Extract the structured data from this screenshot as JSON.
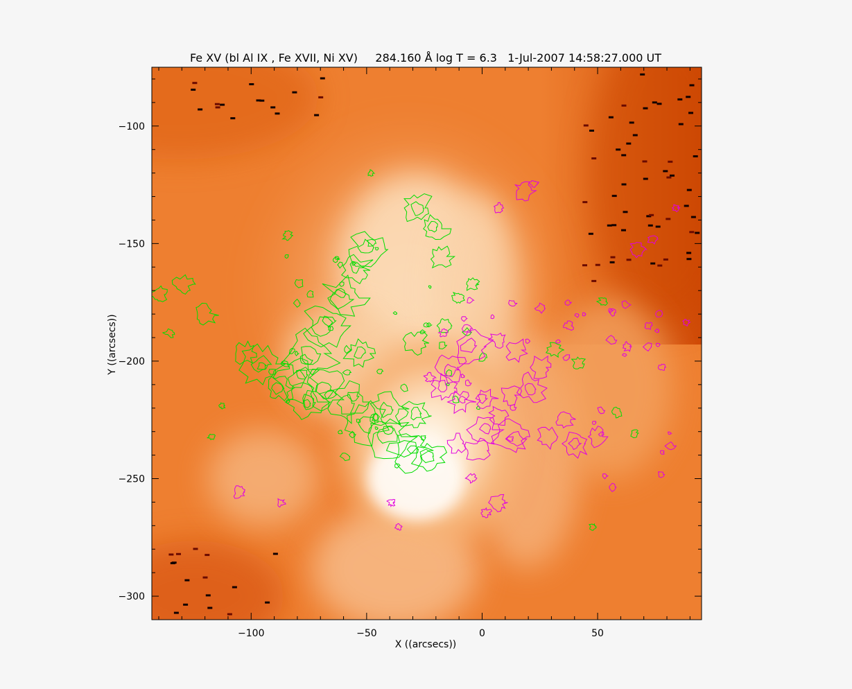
{
  "figure": {
    "title": "Fe XV (bl Al IX , Fe XVII, Ni XV)     284.160 Å log T = 6.3   1-Jul-2007 14:58:27.000 UT",
    "xlabel": "X ((arcsecs))",
    "ylabel": "Y ((arcsecs))"
  },
  "chart_data": {
    "type": "heatmap",
    "title": "Fe XV (bl Al IX , Fe XVII, Ni XV)     284.160 Å log T = 6.3   1-Jul-2007 14:58:27.000 UT",
    "xlabel": "X ((arcsecs))",
    "ylabel": "Y ((arcsecs))",
    "xlim": [
      -143,
      95
    ],
    "ylim": [
      -310,
      -75
    ],
    "x_ticks": [
      -100,
      -50,
      0,
      50
    ],
    "y_ticks": [
      -100,
      -150,
      -200,
      -250,
      -300
    ],
    "x_tick_labels": [
      "−100",
      "−50",
      "0",
      "50"
    ],
    "y_tick_labels": [
      "−100",
      "−150",
      "−200",
      "−250",
      "−300"
    ],
    "colormap": [
      "#d24a00",
      "#f08a3e",
      "#f8c590",
      "#fff5ea"
    ],
    "contour_colors": {
      "green": "#00dd00",
      "magenta": "#e000e0"
    }
  }
}
